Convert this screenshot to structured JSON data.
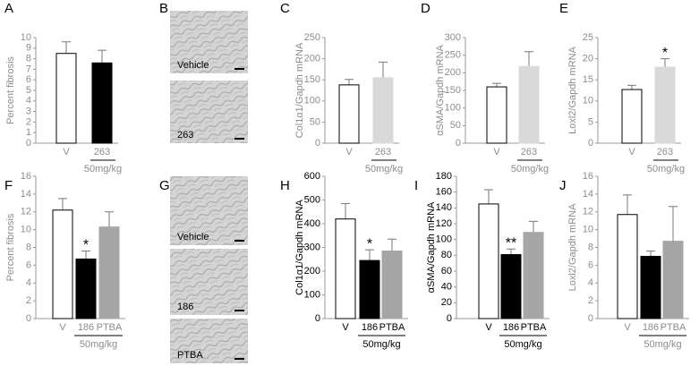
{
  "chart_data": [
    {
      "type": "bar",
      "panel": "A",
      "ylabel": "Percent fibrosis",
      "text_color": "#8c8c8c",
      "categories": [
        "V",
        "263"
      ],
      "values": [
        8.5,
        7.6
      ],
      "errors": [
        1.1,
        1.2
      ],
      "significance": [
        null,
        null
      ],
      "colors": [
        "#ffffff",
        "#000000"
      ],
      "dose_label": "50mg/kg",
      "ylim": [
        0,
        10
      ],
      "yticks": [
        0,
        1,
        2,
        3,
        4,
        5,
        6,
        7,
        8,
        9,
        10
      ]
    },
    {
      "type": "bar",
      "panel": "C",
      "ylabel": "Col1α1/Gapdh mRNA",
      "text_color": "#8c8c8c",
      "categories": [
        "V",
        "263"
      ],
      "values": [
        138,
        155
      ],
      "errors": [
        13,
        37
      ],
      "significance": [
        null,
        null
      ],
      "colors": [
        "#ffffff",
        "#d9d9d9"
      ],
      "dose_label": "50mg/kg",
      "ylim": [
        0,
        250
      ],
      "yticks": [
        0,
        50,
        100,
        150,
        200,
        250
      ]
    },
    {
      "type": "bar",
      "panel": "D",
      "ylabel": "αSMA/Gapdh mRNA",
      "text_color": "#8c8c8c",
      "categories": [
        "V",
        "263"
      ],
      "values": [
        160,
        218
      ],
      "errors": [
        10,
        42
      ],
      "significance": [
        null,
        null
      ],
      "colors": [
        "#ffffff",
        "#d9d9d9"
      ],
      "dose_label": "50mg/kg",
      "ylim": [
        0,
        300
      ],
      "yticks": [
        0,
        50,
        100,
        150,
        200,
        250,
        300
      ]
    },
    {
      "type": "bar",
      "panel": "E",
      "ylabel": "Loxl2/Gapdh mRNA",
      "text_color": "#8c8c8c",
      "categories": [
        "V",
        "263"
      ],
      "values": [
        12.7,
        18
      ],
      "errors": [
        1,
        2
      ],
      "significance": [
        null,
        "*"
      ],
      "colors": [
        "#ffffff",
        "#d9d9d9"
      ],
      "dose_label": "50mg/kg",
      "ylim": [
        0,
        25
      ],
      "yticks": [
        0,
        5,
        10,
        15,
        20,
        25
      ]
    },
    {
      "type": "bar",
      "panel": "F",
      "ylabel": "Percent fibrosis",
      "text_color": "#8c8c8c",
      "categories": [
        "V",
        "186",
        "PTBA"
      ],
      "values": [
        12.2,
        6.7,
        10.3
      ],
      "errors": [
        1.3,
        0.9,
        1.7
      ],
      "significance": [
        null,
        "*",
        null
      ],
      "colors": [
        "#ffffff",
        "#000000",
        "#a6a6a6"
      ],
      "dose_label": "50mg/kg",
      "ylim": [
        0,
        16
      ],
      "yticks": [
        0,
        2,
        4,
        6,
        8,
        10,
        12,
        14,
        16
      ]
    },
    {
      "type": "bar",
      "panel": "H",
      "ylabel": "Col1α1/Gapdh mRNA",
      "text_color": "#000000",
      "categories": [
        "V",
        "186",
        "PTBA"
      ],
      "values": [
        420,
        245,
        285
      ],
      "errors": [
        65,
        45,
        50
      ],
      "significance": [
        null,
        "*",
        null
      ],
      "colors": [
        "#ffffff",
        "#000000",
        "#a6a6a6"
      ],
      "dose_label": "50mg/kg",
      "ylim": [
        0,
        600
      ],
      "yticks": [
        0,
        100,
        200,
        300,
        400,
        500,
        600
      ]
    },
    {
      "type": "bar",
      "panel": "I",
      "ylabel": "αSMA/Gapdh mRNA",
      "text_color": "#000000",
      "categories": [
        "V",
        "186",
        "PTBA"
      ],
      "values": [
        145,
        81,
        109
      ],
      "errors": [
        18,
        7,
        14
      ],
      "significance": [
        null,
        "**",
        null
      ],
      "colors": [
        "#ffffff",
        "#000000",
        "#a6a6a6"
      ],
      "dose_label": "50mg/kg",
      "ylim": [
        0,
        180
      ],
      "yticks": [
        0,
        20,
        40,
        60,
        80,
        100,
        120,
        140,
        160,
        180
      ]
    },
    {
      "type": "bar",
      "panel": "J",
      "ylabel": "Loxl2/Gapdh mRNA",
      "text_color": "#8c8c8c",
      "categories": [
        "V",
        "186",
        "PTBA"
      ],
      "values": [
        11.7,
        7,
        8.7
      ],
      "errors": [
        2.2,
        0.6,
        3.9
      ],
      "significance": [
        null,
        null,
        null
      ],
      "colors": [
        "#ffffff",
        "#000000",
        "#a6a6a6"
      ],
      "dose_label": "50mg/kg",
      "ylim": [
        0,
        16
      ],
      "yticks": [
        0,
        2,
        4,
        6,
        8,
        10,
        12,
        14,
        16
      ]
    }
  ],
  "images": [
    {
      "panel": "B",
      "captions": [
        "Vehicle",
        "263"
      ]
    },
    {
      "panel": "G",
      "captions": [
        "Vehicle",
        "186",
        "PTBA"
      ]
    }
  ]
}
